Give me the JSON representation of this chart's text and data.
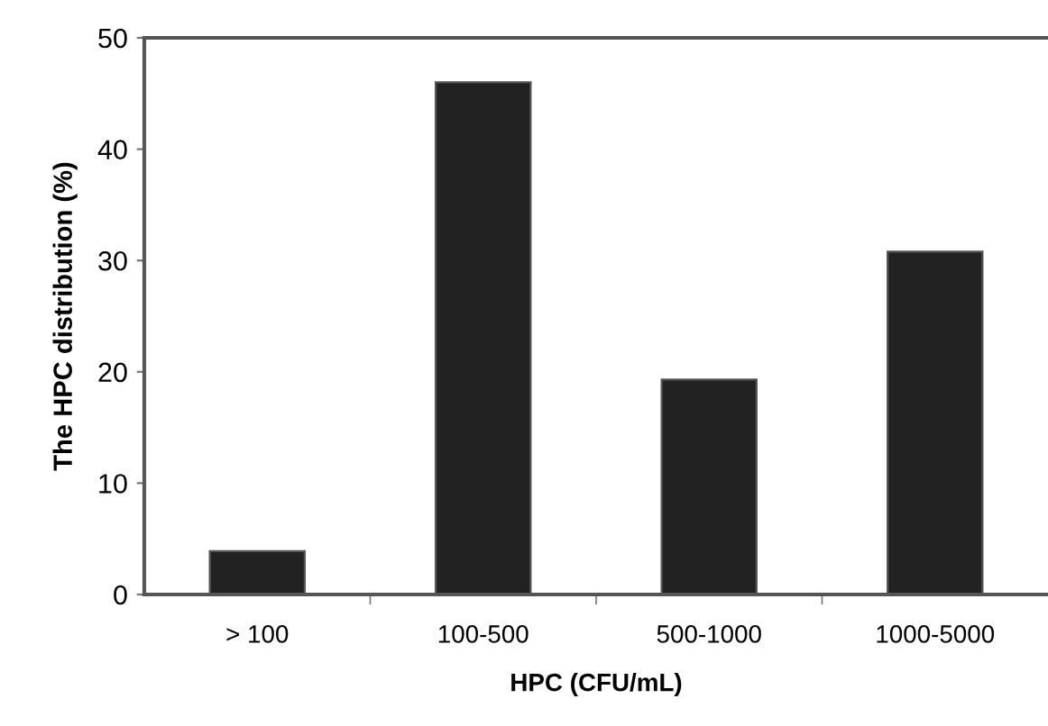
{
  "chart_data": {
    "type": "bar",
    "xlabel": "HPC (CFU/mL)",
    "ylabel": "The HPC distribution (%)",
    "categories": [
      "> 100",
      "100-500",
      "500-1000",
      "1000-5000"
    ],
    "values": [
      3.9,
      46,
      19.3,
      30.8
    ],
    "color": "#222222",
    "ylim": [
      0,
      50
    ],
    "yticks": [
      0,
      10,
      20,
      30,
      40,
      50
    ],
    "grid": false,
    "legend": false
  }
}
